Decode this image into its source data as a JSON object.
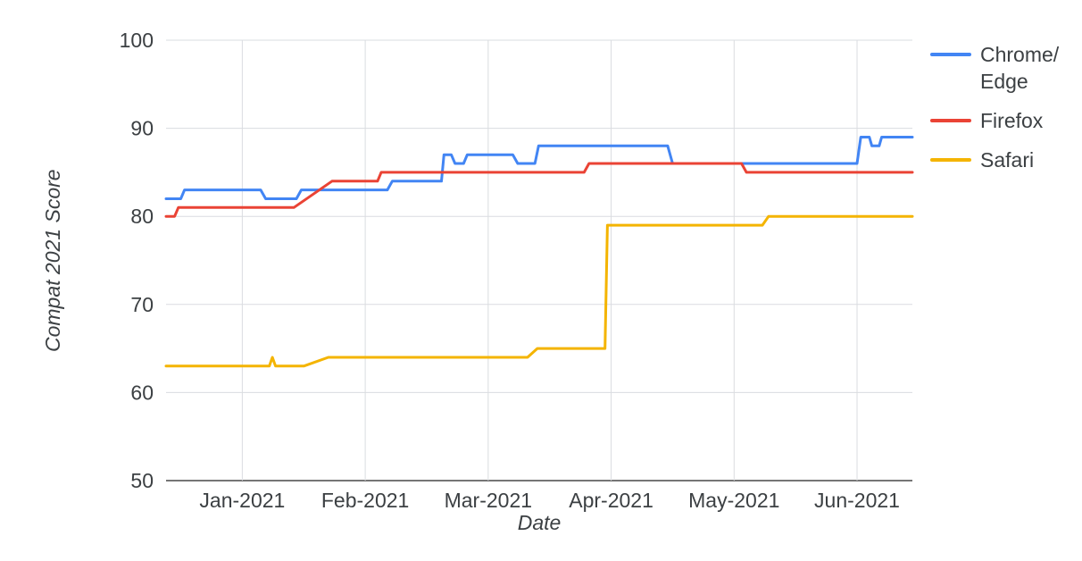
{
  "colors": {
    "grid": "#dadce0",
    "axis": "#757575",
    "text": "#3c4043",
    "background": "#ffffff",
    "chrome_edge": "#4285F4",
    "firefox": "#EA4335",
    "safari": "#F4B400"
  },
  "chart_data": {
    "type": "line",
    "title": "",
    "xlabel": "Date",
    "ylabel": "Compat 2021 Score",
    "grid": true,
    "legend_position": "top-right",
    "x_axis": {
      "tick_labels": [
        "Jan-2021",
        "Feb-2021",
        "Mar-2021",
        "Apr-2021",
        "May-2021",
        "Jun-2021"
      ],
      "tick_positions_months": [
        0,
        1,
        2,
        3,
        4,
        5
      ],
      "range_months": [
        -0.62,
        5.45
      ]
    },
    "y_axis": {
      "ticks": [
        50,
        60,
        70,
        80,
        90,
        100
      ],
      "range": [
        50,
        100
      ]
    },
    "series": [
      {
        "name": "Chrome/Edge",
        "color": "#4285F4",
        "points": [
          [
            -0.62,
            82
          ],
          [
            -0.5,
            82
          ],
          [
            -0.47,
            83
          ],
          [
            0.15,
            83
          ],
          [
            0.19,
            82
          ],
          [
            0.44,
            82
          ],
          [
            0.48,
            83
          ],
          [
            1.18,
            83
          ],
          [
            1.22,
            84
          ],
          [
            1.62,
            84
          ],
          [
            1.64,
            87
          ],
          [
            1.7,
            87
          ],
          [
            1.73,
            86
          ],
          [
            1.8,
            86
          ],
          [
            1.83,
            87
          ],
          [
            2.2,
            87
          ],
          [
            2.24,
            86
          ],
          [
            2.38,
            86
          ],
          [
            2.41,
            88
          ],
          [
            3.46,
            88
          ],
          [
            3.5,
            86
          ],
          [
            5.0,
            86
          ],
          [
            5.03,
            89
          ],
          [
            5.1,
            89
          ],
          [
            5.12,
            88
          ],
          [
            5.18,
            88
          ],
          [
            5.2,
            89
          ],
          [
            5.45,
            89
          ]
        ]
      },
      {
        "name": "Firefox",
        "color": "#EA4335",
        "points": [
          [
            -0.62,
            80
          ],
          [
            -0.55,
            80
          ],
          [
            -0.52,
            81
          ],
          [
            0.42,
            81
          ],
          [
            0.73,
            84
          ],
          [
            1.1,
            84
          ],
          [
            1.13,
            85
          ],
          [
            2.78,
            85
          ],
          [
            2.82,
            86
          ],
          [
            4.06,
            86
          ],
          [
            4.1,
            85
          ],
          [
            5.45,
            85
          ]
        ]
      },
      {
        "name": "Safari",
        "color": "#F4B400",
        "points": [
          [
            -0.62,
            63
          ],
          [
            0.22,
            63
          ],
          [
            0.245,
            64
          ],
          [
            0.27,
            63
          ],
          [
            0.5,
            63
          ],
          [
            0.7,
            64
          ],
          [
            2.32,
            64
          ],
          [
            2.4,
            65
          ],
          [
            2.95,
            65
          ],
          [
            2.97,
            79
          ],
          [
            4.23,
            79
          ],
          [
            4.28,
            80
          ],
          [
            5.45,
            80
          ]
        ]
      }
    ]
  }
}
